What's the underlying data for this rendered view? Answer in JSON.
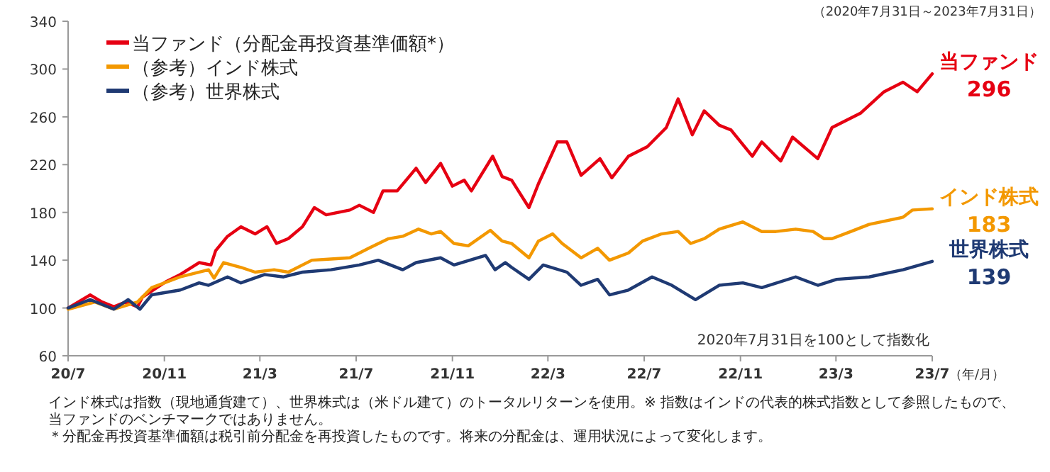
{
  "chart_data": {
    "type": "line",
    "subtitle": "（2020年7月31日～2023年7月31日）",
    "xlabel": "（年/月）",
    "legend": "top left",
    "grid": false,
    "xlim": [
      "2020-07-31",
      "2023-07-31"
    ],
    "xticks": [
      {
        "value": "2020-07-31",
        "label": "20/7"
      },
      {
        "value": "2020-11-30",
        "label": "20/11"
      },
      {
        "value": "2021-03-31",
        "label": "21/3"
      },
      {
        "value": "2021-07-31",
        "label": "21/7"
      },
      {
        "value": "2021-11-30",
        "label": "21/11"
      },
      {
        "value": "2022-03-31",
        "label": "22/3"
      },
      {
        "value": "2022-07-31",
        "label": "22/7"
      },
      {
        "value": "2022-11-30",
        "label": "22/11"
      },
      {
        "value": "2023-03-31",
        "label": "23/3"
      },
      {
        "value": "2023-07-31",
        "label": "23/7"
      }
    ],
    "ylim": [
      60,
      340
    ],
    "yticks": [
      60,
      100,
      140,
      180,
      220,
      260,
      300,
      340
    ],
    "series": [
      {
        "name": "当ファンド（分配金再投資基準価額*）",
        "color": "#e60012",
        "x": [
          "2020-07-31",
          "2020-08-28",
          "2020-09-12",
          "2020-09-27",
          "2020-10-12",
          "2020-10-27",
          "2020-11-02",
          "2020-12-02",
          "2020-12-20",
          "2021-01-13",
          "2021-01-28",
          "2021-02-03",
          "2021-02-18",
          "2021-03-07",
          "2021-03-25",
          "2021-04-09",
          "2021-04-21",
          "2021-05-06",
          "2021-05-24",
          "2021-06-08",
          "2021-06-23",
          "2021-07-23",
          "2021-08-04",
          "2021-08-22",
          "2021-09-03",
          "2021-09-21",
          "2021-10-15",
          "2021-10-27",
          "2021-11-15",
          "2021-11-30",
          "2021-12-15",
          "2021-12-24",
          "2022-01-20",
          "2022-02-01",
          "2022-02-13",
          "2022-03-07",
          "2022-03-19",
          "2022-04-12",
          "2022-04-24",
          "2022-05-12",
          "2022-06-05",
          "2022-06-20",
          "2022-07-11",
          "2022-08-04",
          "2022-08-28",
          "2022-09-12",
          "2022-09-30",
          "2022-10-15",
          "2022-11-03",
          "2022-11-18",
          "2022-12-15",
          "2022-12-27",
          "2023-01-20",
          "2023-02-04",
          "2023-03-08",
          "2023-03-26",
          "2023-05-01",
          "2023-05-31",
          "2023-06-24",
          "2023-07-12",
          "2023-07-31"
        ],
        "values": [
          100,
          111,
          105,
          101,
          105,
          101,
          109,
          122,
          128,
          138,
          136,
          148,
          160,
          168,
          162,
          168,
          154,
          158,
          168,
          184,
          178,
          182,
          186,
          180,
          198,
          198,
          217,
          205,
          221,
          202,
          207,
          198,
          227,
          210,
          207,
          184,
          204,
          239,
          239,
          211,
          225,
          209,
          227,
          235,
          251,
          275,
          245,
          265,
          253,
          249,
          227,
          239,
          223,
          243,
          225,
          251,
          263,
          281,
          289,
          281,
          296
        ],
        "value_labels": [
          null,
          null,
          null,
          null,
          null,
          null,
          null,
          null,
          null,
          null,
          null,
          null,
          null,
          null,
          null,
          null,
          null,
          null,
          null,
          null,
          null,
          null,
          null,
          null,
          null,
          null,
          null,
          null,
          null,
          null,
          null,
          null,
          null,
          null,
          null,
          null,
          null,
          null,
          null,
          null,
          null,
          null,
          null,
          null,
          null,
          null,
          null,
          null,
          null,
          null,
          null,
          null,
          null,
          null,
          null,
          null,
          null,
          null,
          null,
          null,
          "296"
        ]
      },
      {
        "name": "（参考）インド株式",
        "color": "#f39800",
        "x": [
          "2020-07-31",
          "2020-09-03",
          "2020-09-27",
          "2020-10-27",
          "2020-11-14",
          "2020-12-20",
          "2021-01-25",
          "2021-02-01",
          "2021-02-13",
          "2021-03-07",
          "2021-03-25",
          "2021-04-18",
          "2021-05-06",
          "2021-06-05",
          "2021-06-29",
          "2021-07-23",
          "2021-08-16",
          "2021-09-10",
          "2021-09-28",
          "2021-10-18",
          "2021-11-03",
          "2021-11-15",
          "2021-12-02",
          "2021-12-20",
          "2022-01-17",
          "2022-02-01",
          "2022-02-13",
          "2022-03-07",
          "2022-03-19",
          "2022-04-06",
          "2022-04-18",
          "2022-05-12",
          "2022-06-02",
          "2022-06-17",
          "2022-07-11",
          "2022-07-29",
          "2022-08-22",
          "2022-09-12",
          "2022-09-28",
          "2022-10-15",
          "2022-11-03",
          "2022-12-03",
          "2022-12-27",
          "2023-01-14",
          "2023-02-08",
          "2023-03-02",
          "2023-03-16",
          "2023-03-26",
          "2023-04-19",
          "2023-05-12",
          "2023-06-24",
          "2023-07-06",
          "2023-07-31"
        ],
        "values": [
          99,
          105,
          99,
          105,
          117,
          126,
          132,
          125,
          138,
          134,
          130,
          132,
          130,
          140,
          141,
          142,
          150,
          158,
          160,
          166,
          162,
          164,
          154,
          152,
          165,
          156,
          154,
          142,
          156,
          162,
          154,
          142,
          150,
          140,
          146,
          156,
          162,
          164,
          154,
          158,
          166,
          172,
          164,
          164,
          166,
          164,
          158,
          158,
          164,
          170,
          176,
          182,
          183
        ],
        "value_labels": [
          null,
          null,
          null,
          null,
          null,
          null,
          null,
          null,
          null,
          null,
          null,
          null,
          null,
          null,
          null,
          null,
          null,
          null,
          null,
          null,
          null,
          null,
          null,
          null,
          null,
          null,
          null,
          null,
          null,
          null,
          null,
          null,
          null,
          null,
          null,
          null,
          null,
          null,
          null,
          null,
          null,
          null,
          null,
          null,
          null,
          null,
          null,
          null,
          null,
          null,
          null,
          null,
          "183"
        ]
      },
      {
        "name": "（参考）世界株式",
        "color": "#1f3a73",
        "x": [
          "2020-07-31",
          "2020-08-28",
          "2020-09-27",
          "2020-10-15",
          "2020-10-30",
          "2020-11-14",
          "2020-12-20",
          "2021-01-13",
          "2021-01-25",
          "2021-02-18",
          "2021-03-07",
          "2021-04-06",
          "2021-04-30",
          "2021-05-24",
          "2021-06-29",
          "2021-08-04",
          "2021-08-28",
          "2021-09-28",
          "2021-10-15",
          "2021-11-15",
          "2021-12-02",
          "2022-01-11",
          "2022-01-23",
          "2022-02-05",
          "2022-02-13",
          "2022-03-07",
          "2022-03-25",
          "2022-04-24",
          "2022-05-12",
          "2022-06-02",
          "2022-06-17",
          "2022-07-11",
          "2022-08-10",
          "2022-09-04",
          "2022-10-04",
          "2022-11-03",
          "2022-12-03",
          "2022-12-27",
          "2023-02-08",
          "2023-03-08",
          "2023-04-01",
          "2023-05-12",
          "2023-06-24",
          "2023-07-31"
        ],
        "values": [
          100,
          107,
          99,
          107,
          99,
          111,
          115,
          121,
          119,
          126,
          121,
          128,
          126,
          130,
          132,
          136,
          140,
          132,
          138,
          142,
          136,
          144,
          132,
          138,
          134,
          124,
          136,
          130,
          119,
          124,
          111,
          115,
          126,
          119,
          107,
          119,
          121,
          117,
          126,
          119,
          124,
          126,
          132,
          139
        ],
        "value_labels": [
          null,
          null,
          null,
          null,
          null,
          null,
          null,
          null,
          null,
          null,
          null,
          null,
          null,
          null,
          null,
          null,
          null,
          null,
          null,
          null,
          null,
          null,
          null,
          null,
          null,
          null,
          null,
          null,
          null,
          null,
          null,
          null,
          null,
          null,
          null,
          null,
          null,
          null,
          null,
          null,
          null,
          null,
          null,
          "139"
        ]
      }
    ],
    "annotations": [
      {
        "text": "当ファンド",
        "x": "2023-07-31",
        "y": 296
      },
      {
        "text": "インド株式",
        "x": "2023-07-31",
        "y": 183
      },
      {
        "text": "世界株式",
        "x": "2023-07-31",
        "y": 139
      },
      "2020年7月31日を100として指数化",
      "インド株式は指数（現地通貨建て）、世界株式は（米ドル建て）のトータルリターンを使用。※ 指数はインドの代表的株式指数として参照したもので、当ファンドのベンチマークではありません。",
      "＊分配金再投資基準価額は税引前分配金を再投資したものです。将来の分配金は、運用状況によって変化します。"
    ]
  }
}
